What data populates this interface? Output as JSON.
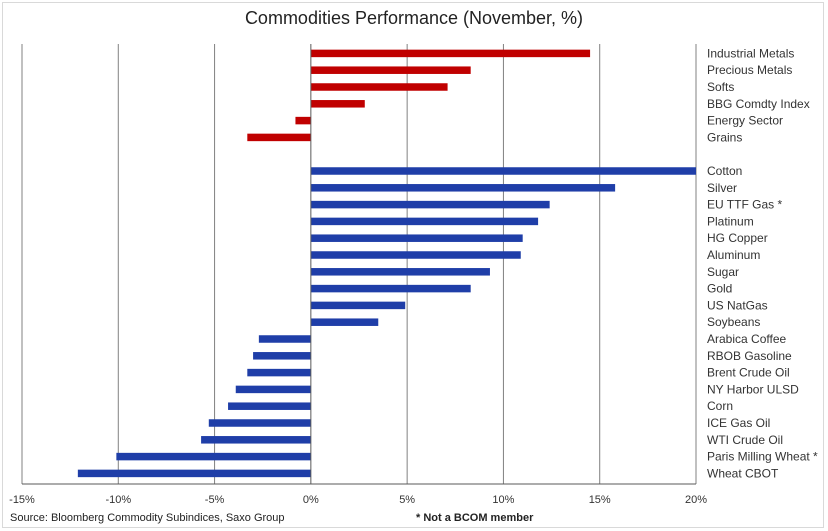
{
  "title": "Commodities Performance (November, %)",
  "source": "Source: Bloomberg Commodity Subindices, Saxo Group",
  "footnote": "* Not a BCOM member",
  "colors": {
    "group1": "#c00000",
    "group2": "#1f3ea8",
    "grid": "#808080",
    "axis": "#595959"
  },
  "chart_data": {
    "type": "bar",
    "orientation": "horizontal",
    "title": "Commodities Performance (November, %)",
    "xlim": [
      -15,
      20
    ],
    "x_ticks": [
      "-15%",
      "-10%",
      "-5%",
      "0%",
      "5%",
      "10%",
      "15%",
      "20%"
    ],
    "x_tick_values": [
      -15,
      -10,
      -5,
      0,
      5,
      10,
      15,
      20
    ],
    "grid": true,
    "groups": [
      {
        "color": "#c00000",
        "categories": [
          "Industrial Metals",
          "Precious Metals",
          "Softs",
          "BBG Comdty Index",
          "Energy Sector",
          "Grains"
        ],
        "values": [
          14.5,
          8.3,
          7.1,
          2.8,
          -0.8,
          -3.3
        ]
      },
      {
        "color": "#1f3ea8",
        "categories": [
          "Cotton",
          "Silver",
          "EU TTF Gas *",
          "Platinum",
          "HG Copper",
          "Aluminum",
          "Sugar",
          "Gold",
          "US NatGas",
          "Soybeans",
          "Arabica Coffee",
          "RBOB Gasoline",
          "Brent Crude Oil",
          "NY Harbor ULSD",
          "Corn",
          "ICE Gas Oil",
          "WTI Crude Oil",
          "Paris Milling Wheat *",
          "Wheat CBOT"
        ],
        "values": [
          20.0,
          15.8,
          12.4,
          11.8,
          11.0,
          10.9,
          9.3,
          8.3,
          4.9,
          3.5,
          -2.7,
          -3.0,
          -3.3,
          -3.9,
          -4.3,
          -5.3,
          -5.7,
          -10.1,
          -12.1
        ]
      }
    ]
  }
}
